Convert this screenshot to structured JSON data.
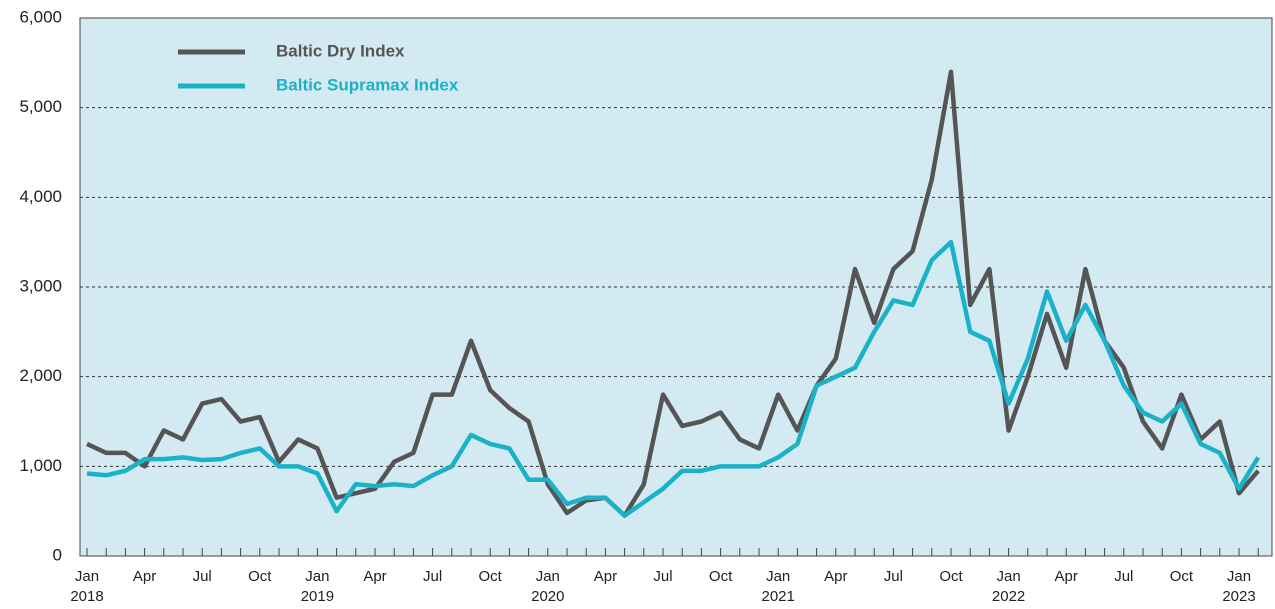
{
  "chart_data": {
    "type": "line",
    "x": [
      "2018-01",
      "2018-02",
      "2018-03",
      "2018-04",
      "2018-05",
      "2018-06",
      "2018-07",
      "2018-08",
      "2018-09",
      "2018-10",
      "2018-11",
      "2018-12",
      "2019-01",
      "2019-02",
      "2019-03",
      "2019-04",
      "2019-05",
      "2019-06",
      "2019-07",
      "2019-08",
      "2019-09",
      "2019-10",
      "2019-11",
      "2019-12",
      "2020-01",
      "2020-02",
      "2020-03",
      "2020-04",
      "2020-05",
      "2020-06",
      "2020-07",
      "2020-08",
      "2020-09",
      "2020-10",
      "2020-11",
      "2020-12",
      "2021-01",
      "2021-02",
      "2021-03",
      "2021-04",
      "2021-05",
      "2021-06",
      "2021-07",
      "2021-08",
      "2021-09",
      "2021-10",
      "2021-11",
      "2021-12",
      "2022-01",
      "2022-02",
      "2022-03",
      "2022-04",
      "2022-05",
      "2022-06",
      "2022-07",
      "2022-08",
      "2022-09",
      "2022-10",
      "2022-11",
      "2022-12",
      "2023-01",
      "2023-02"
    ],
    "series": [
      {
        "name": "Baltic Dry Index",
        "color": "#555555",
        "values": [
          1250,
          1150,
          1150,
          1000,
          1400,
          1300,
          1700,
          1750,
          1500,
          1550,
          1050,
          1300,
          1200,
          650,
          700,
          750,
          1050,
          1150,
          1800,
          1800,
          2400,
          1850,
          1650,
          1500,
          800,
          480,
          620,
          650,
          450,
          800,
          1800,
          1450,
          1500,
          1600,
          1300,
          1200,
          1800,
          1400,
          1900,
          2200,
          3200,
          2600,
          3200,
          3400,
          4200,
          5400,
          2800,
          3200,
          1400,
          2000,
          2700,
          2100,
          3200,
          2400,
          2100,
          1500,
          1200,
          1800,
          1300,
          1500,
          700,
          950
        ]
      },
      {
        "name": "Baltic Supramax Index",
        "color": "#1ab2c8",
        "values": [
          920,
          900,
          950,
          1080,
          1080,
          1100,
          1070,
          1080,
          1150,
          1200,
          1000,
          1000,
          920,
          500,
          800,
          780,
          800,
          780,
          900,
          1000,
          1350,
          1250,
          1200,
          850,
          850,
          580,
          650,
          650,
          450,
          600,
          750,
          950,
          950,
          1000,
          1000,
          1000,
          1100,
          1250,
          1900,
          2000,
          2100,
          2500,
          2850,
          2800,
          3300,
          3500,
          2500,
          2400,
          1700,
          2200,
          2950,
          2400,
          2800,
          2400,
          1900,
          1600,
          1500,
          1700,
          1250,
          1150,
          750,
          1100
        ]
      }
    ],
    "ylim": [
      0,
      6000
    ],
    "yticks": [
      0,
      {
        "value": 1000,
        "label": "1,000"
      },
      {
        "value": 2000,
        "label": "2,000"
      },
      {
        "value": 3000,
        "label": "3,000"
      },
      {
        "value": 4000,
        "label": "4,000"
      },
      {
        "value": 5000,
        "label": "5,000"
      },
      {
        "value": 6000,
        "label": "6,000"
      }
    ],
    "xticks": [
      {
        "value": "2018-01",
        "label": "Jan"
      },
      {
        "value": "2018-04",
        "label": "Apr"
      },
      {
        "value": "2018-07",
        "label": "Jul"
      },
      {
        "value": "2018-10",
        "label": "Oct"
      },
      {
        "value": "2019-01",
        "label": "Jan"
      },
      {
        "value": "2019-04",
        "label": "Apr"
      },
      {
        "value": "2019-07",
        "label": "Jul"
      },
      {
        "value": "2019-10",
        "label": "Oct"
      },
      {
        "value": "2020-01",
        "label": "Jan"
      },
      {
        "value": "2020-04",
        "label": "Apr"
      },
      {
        "value": "2020-07",
        "label": "Jul"
      },
      {
        "value": "2020-10",
        "label": "Oct"
      },
      {
        "value": "2021-01",
        "label": "Jan"
      },
      {
        "value": "2021-04",
        "label": "Apr"
      },
      {
        "value": "2021-07",
        "label": "Jul"
      },
      {
        "value": "2021-10",
        "label": "Oct"
      },
      {
        "value": "2022-01",
        "label": "Jan"
      },
      {
        "value": "2022-04",
        "label": "Apr"
      },
      {
        "value": "2022-07",
        "label": "Jul"
      },
      {
        "value": "2022-10",
        "label": "Oct"
      },
      {
        "value": "2023-01",
        "label": "Jan"
      }
    ],
    "xtick_years": [
      {
        "value": "2018-01",
        "label": "2018"
      },
      {
        "value": "2019-01",
        "label": "2019"
      },
      {
        "value": "2020-01",
        "label": "2020"
      },
      {
        "value": "2021-01",
        "label": "2021"
      },
      {
        "value": "2022-01",
        "label": "2022"
      },
      {
        "value": "2023-01",
        "label": "2023"
      }
    ],
    "grid": true,
    "legend": "upper left"
  }
}
